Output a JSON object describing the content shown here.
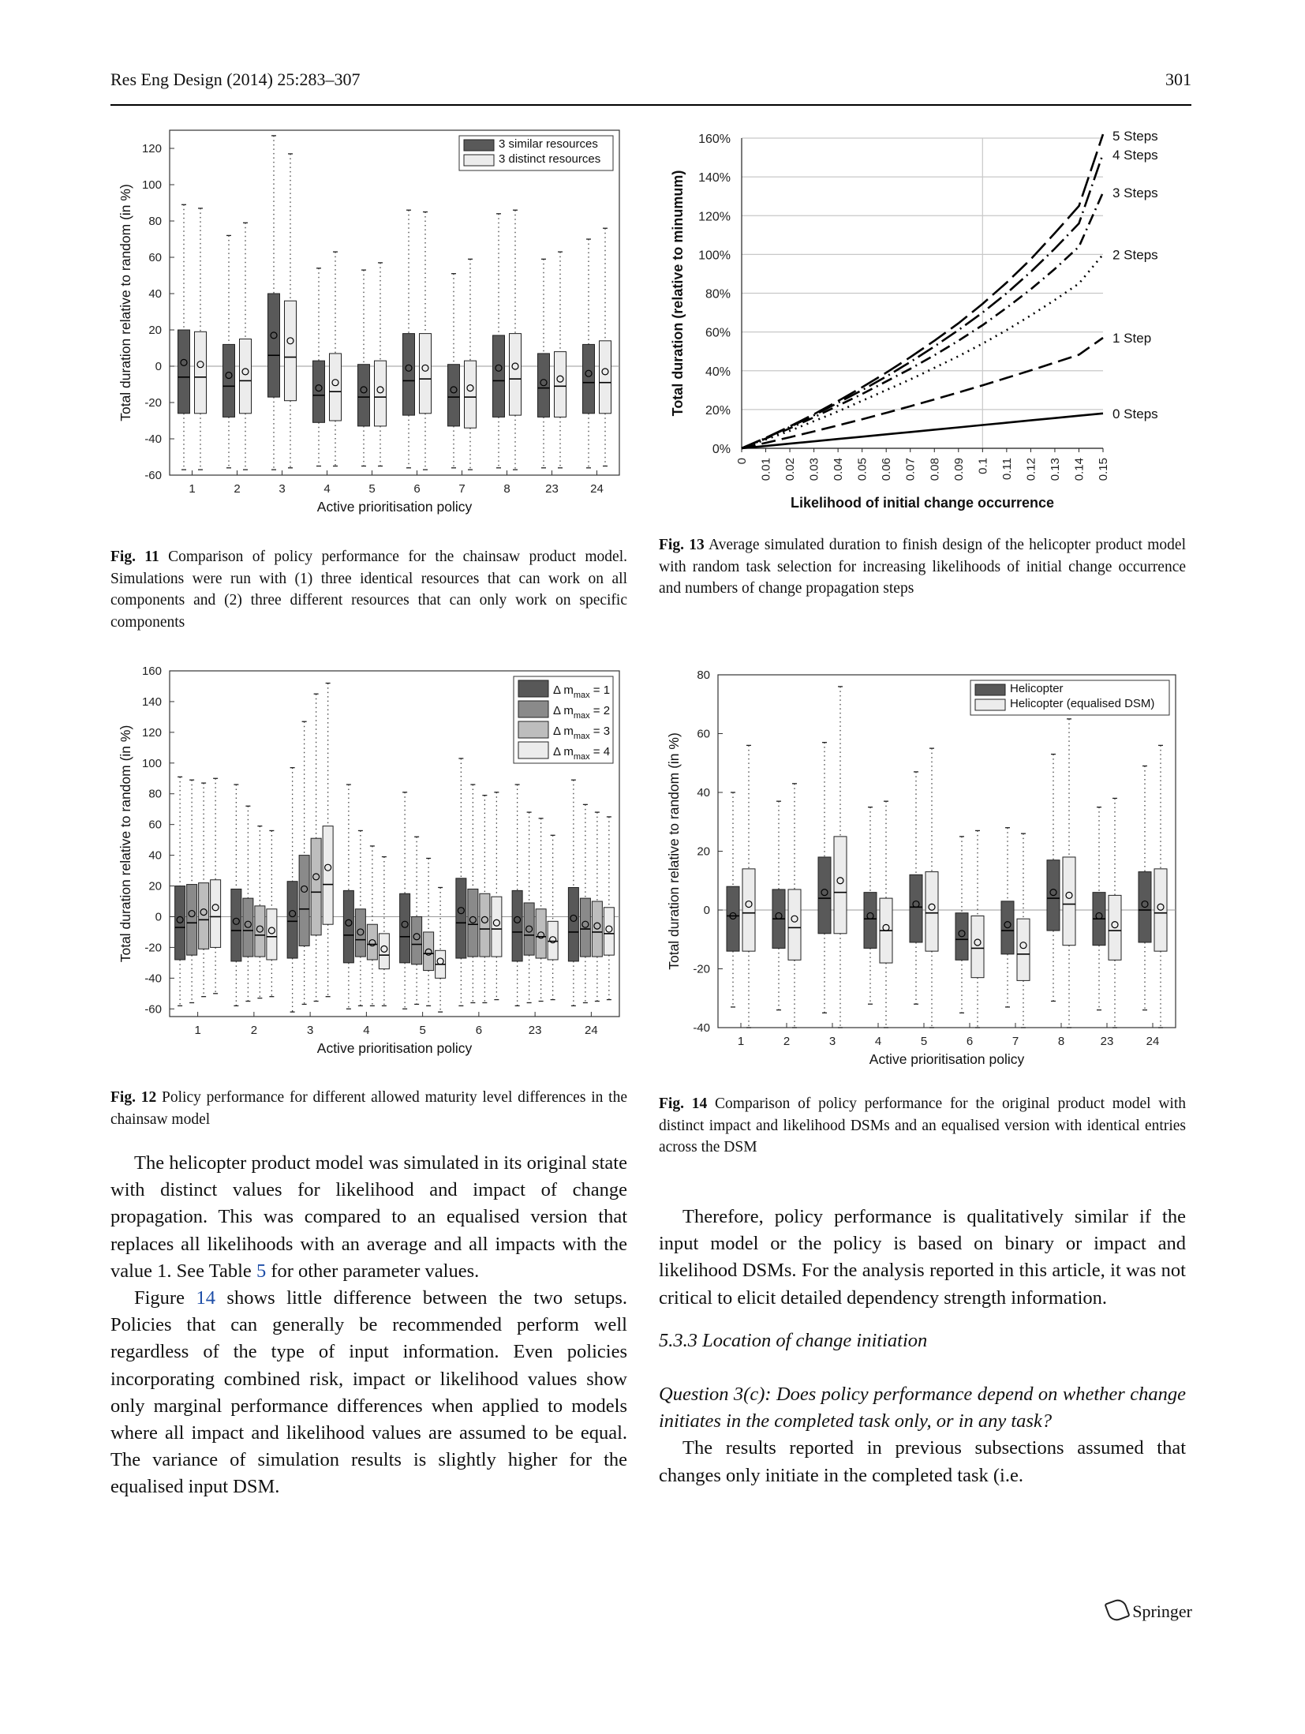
{
  "header": {
    "journal": "Res Eng Design (2014) 25:283–307",
    "page": "301"
  },
  "figures": {
    "fig11": {
      "label": "Fig. 11",
      "caption": "Comparison of policy performance for the chainsaw product model. Simulations were run with (1) three identical resources that can work on all components and (2) three different resources that can only work on specific components"
    },
    "fig12": {
      "label": "Fig. 12",
      "caption": "Policy performance for different allowed maturity level differences in the chainsaw model"
    },
    "fig13": {
      "label": "Fig. 13",
      "caption": "Average simulated duration to finish design of the helicopter product model with random task selection for increasing likelihoods of initial change occurrence and numbers of change propagation steps"
    },
    "fig14": {
      "label": "Fig. 14",
      "caption": "Comparison of policy performance for the original product model with distinct impact and likelihood DSMs and an equalised version with identical entries across the DSM"
    }
  },
  "chart_data": [
    {
      "id": "fig11",
      "type": "box",
      "xlabel": "Active prioritisation policy",
      "ylabel": "Total duration relative to random (in %)",
      "ylim": [
        -60,
        130
      ],
      "yticks": [
        -60,
        -40,
        -20,
        0,
        20,
        40,
        60,
        80,
        100,
        120
      ],
      "categories": [
        "1",
        "2",
        "3",
        "4",
        "5",
        "6",
        "7",
        "8",
        "23",
        "24"
      ],
      "legend_position": "top-right",
      "series": [
        {
          "name": "3 similar resources",
          "color": "#595959",
          "boxes": [
            [
              -57,
              -26,
              -6,
              20,
              89,
              2
            ],
            [
              -56,
              -28,
              -11,
              12,
              72,
              -5
            ],
            [
              -57,
              -17,
              6,
              40,
              127,
              17
            ],
            [
              -55,
              -31,
              -16,
              3,
              54,
              -12
            ],
            [
              -55,
              -33,
              -17,
              1,
              53,
              -13
            ],
            [
              -56,
              -27,
              -8,
              18,
              86,
              -1
            ],
            [
              -56,
              -33,
              -17,
              1,
              51,
              -13
            ],
            [
              -56,
              -28,
              -8,
              17,
              84,
              -1
            ],
            [
              -56,
              -28,
              -12,
              7,
              59,
              -9
            ],
            [
              -56,
              -26,
              -9,
              12,
              70,
              -4
            ]
          ]
        },
        {
          "name": "3 distinct resources",
          "color": "#ececec",
          "boxes": [
            [
              -57,
              -26,
              -6,
              19,
              87,
              1
            ],
            [
              -57,
              -26,
              -8,
              15,
              79,
              -3
            ],
            [
              -56,
              -19,
              5,
              36,
              117,
              14
            ],
            [
              -55,
              -30,
              -14,
              7,
              63,
              -9
            ],
            [
              -55,
              -33,
              -17,
              3,
              57,
              -13
            ],
            [
              -57,
              -26,
              -7,
              18,
              85,
              -1
            ],
            [
              -57,
              -34,
              -17,
              3,
              59,
              -12
            ],
            [
              -57,
              -27,
              -7,
              18,
              86,
              0
            ],
            [
              -56,
              -28,
              -11,
              8,
              63,
              -7
            ],
            [
              -55,
              -26,
              -9,
              14,
              76,
              -3
            ]
          ]
        }
      ]
    },
    {
      "id": "fig12",
      "type": "box",
      "xlabel": "Active prioritisation policy",
      "ylabel": "Total duration relative to random (in %)",
      "ylim": [
        -65,
        160
      ],
      "yticks": [
        -60,
        -40,
        -20,
        0,
        20,
        40,
        60,
        80,
        100,
        120,
        140,
        160
      ],
      "categories": [
        "1",
        "2",
        "3",
        "4",
        "5",
        "6",
        "23",
        "24"
      ],
      "legend_position": "top-right",
      "series": [
        {
          "name": "Δ m",
          "sub": "max",
          "suffix": " = 1",
          "color": "#585858",
          "boxes": [
            [
              -58,
              -28,
              -7,
              20,
              91,
              -2
            ],
            [
              -58,
              -29,
              -9,
              18,
              86,
              -3
            ],
            [
              -62,
              -27,
              -3,
              23,
              97,
              2
            ],
            [
              -60,
              -30,
              -12,
              17,
              86,
              -4
            ],
            [
              -60,
              -30,
              -13,
              15,
              81,
              -5
            ],
            [
              -58,
              -27,
              -4,
              25,
              103,
              4
            ],
            [
              -58,
              -29,
              -10,
              17,
              86,
              -2
            ],
            [
              -58,
              -29,
              -10,
              19,
              89,
              -1
            ]
          ]
        },
        {
          "name": "Δ m",
          "sub": "max",
          "suffix": " = 2",
          "color": "#8a8a8a",
          "boxes": [
            [
              -56,
              -25,
              -4,
              21,
              89,
              2
            ],
            [
              -55,
              -26,
              -9,
              12,
              72,
              -5
            ],
            [
              -57,
              -19,
              5,
              40,
              127,
              18
            ],
            [
              -58,
              -26,
              -15,
              5,
              56,
              -10
            ],
            [
              -57,
              -31,
              -18,
              0,
              52,
              -13
            ],
            [
              -56,
              -26,
              -5,
              18,
              86,
              -2
            ],
            [
              -56,
              -25,
              -12,
              9,
              68,
              -8
            ],
            [
              -56,
              -26,
              -8,
              12,
              73,
              -5
            ]
          ]
        },
        {
          "name": "Δ m",
          "sub": "max",
          "suffix": " = 3",
          "color": "#bdbdbd",
          "boxes": [
            [
              -52,
              -21,
              -2,
              22,
              87,
              3
            ],
            [
              -53,
              -26,
              -12,
              7,
              59,
              -8
            ],
            [
              -55,
              -12,
              16,
              51,
              145,
              26
            ],
            [
              -58,
              -28,
              -18,
              -5,
              46,
              -17
            ],
            [
              -58,
              -35,
              -24,
              -10,
              38,
              -23
            ],
            [
              -56,
              -26,
              -8,
              15,
              79,
              -2
            ],
            [
              -55,
              -27,
              -13,
              5,
              64,
              -12
            ],
            [
              -55,
              -26,
              -10,
              10,
              68,
              -6
            ]
          ]
        },
        {
          "name": "Δ m",
          "sub": "max",
          "suffix": " = 4",
          "color": "#ececec",
          "boxes": [
            [
              -50,
              -20,
              0,
              24,
              90,
              6
            ],
            [
              -52,
              -28,
              -13,
              5,
              56,
              -9
            ],
            [
              -52,
              -5,
              21,
              59,
              152,
              32
            ],
            [
              -58,
              -34,
              -25,
              -11,
              39,
              -21
            ],
            [
              -62,
              -40,
              -31,
              -22,
              19,
              -29
            ],
            [
              -54,
              -26,
              -8,
              13,
              81,
              -4
            ],
            [
              -54,
              -28,
              -16,
              -3,
              53,
              -15
            ],
            [
              -54,
              -25,
              -11,
              6,
              65,
              -8
            ]
          ]
        }
      ]
    },
    {
      "id": "fig13",
      "type": "line",
      "xlabel": "Likelihood of initial change occurrence",
      "ylabel": "Total duration (relative to minumum)",
      "x": [
        0,
        0.01,
        0.02,
        0.03,
        0.04,
        0.05,
        0.06,
        0.07,
        0.08,
        0.09,
        0.1,
        0.11,
        0.12,
        0.13,
        0.14,
        0.15
      ],
      "xticks": [
        "0",
        "0.01",
        "0.02",
        "0.03",
        "0.04",
        "0.05",
        "0.06",
        "0.07",
        "0.08",
        "0.09",
        "0.1",
        "0.11",
        "0.12",
        "0.13",
        "0.14",
        "0.15"
      ],
      "ylim": [
        0,
        160
      ],
      "yticks": [
        "0%",
        "20%",
        "40%",
        "60%",
        "80%",
        "100%",
        "120%",
        "140%",
        "160%"
      ],
      "grid": "x=0.1 and every y tick",
      "series": [
        {
          "name": "0 Steps",
          "style": "solid",
          "values": [
            0,
            1.2,
            2.4,
            3.6,
            4.8,
            6,
            7.2,
            8.4,
            9.6,
            10.8,
            12,
            13.2,
            14.4,
            15.6,
            16.8,
            18
          ]
        },
        {
          "name": "1 Step",
          "style": "dashed",
          "values": [
            0,
            2.8,
            5.7,
            8.7,
            11.8,
            15,
            18.3,
            21.7,
            25.2,
            28.8,
            32.5,
            36.3,
            40.2,
            44.2,
            48.3,
            57
          ]
        },
        {
          "name": "2 Steps",
          "style": "dotted",
          "values": [
            0,
            4.5,
            9,
            14,
            19,
            24.5,
            30,
            35.5,
            41.5,
            47.5,
            54,
            61,
            68.5,
            76.5,
            85,
            100
          ]
        },
        {
          "name": "3 Steps",
          "style": "dashdot",
          "values": [
            0,
            5,
            10.3,
            16,
            22,
            28,
            34.5,
            41,
            48,
            55.5,
            63.5,
            72.5,
            82,
            92.5,
            104,
            132
          ]
        },
        {
          "name": "4 Steps",
          "style": "longdashdot",
          "values": [
            0,
            5.3,
            11,
            17,
            23.5,
            30,
            37,
            44.5,
            52.5,
            61,
            70,
            80,
            91,
            103,
            116,
            152
          ]
        },
        {
          "name": "5 Steps",
          "style": "longdash",
          "values": [
            0,
            5.4,
            11.3,
            17.6,
            24.4,
            31.5,
            39,
            47,
            55.5,
            64.5,
            74.5,
            85.5,
            97.5,
            111,
            125,
            162
          ]
        }
      ]
    },
    {
      "id": "fig14",
      "type": "box",
      "xlabel": "Active prioritisation policy",
      "ylabel": "Total duration relative to random (in %)",
      "ylim": [
        -40,
        80
      ],
      "yticks": [
        -40,
        -20,
        0,
        20,
        40,
        60,
        80
      ],
      "categories": [
        "1",
        "2",
        "3",
        "4",
        "5",
        "6",
        "7",
        "8",
        "23",
        "24"
      ],
      "legend_position": "top-right",
      "series": [
        {
          "name": "Helicopter",
          "color": "#595959",
          "boxes": [
            [
              -33,
              -14,
              -2,
              8,
              40,
              -2
            ],
            [
              -34,
              -13,
              -3,
              7,
              37,
              -2
            ],
            [
              -35,
              -8,
              4,
              18,
              57,
              6
            ],
            [
              -32,
              -13,
              -3,
              6,
              35,
              -2
            ],
            [
              -32,
              -11,
              1,
              12,
              47,
              2
            ],
            [
              -35,
              -17,
              -10,
              -1,
              25,
              -8
            ],
            [
              -33,
              -15,
              -7,
              3,
              28,
              -5
            ],
            [
              -31,
              -7,
              4,
              17,
              53,
              6
            ],
            [
              -34,
              -12,
              -3,
              6,
              35,
              -2
            ],
            [
              -34,
              -11,
              0,
              13,
              49,
              2
            ]
          ]
        },
        {
          "name": "Helicopter (equalised DSM)",
          "color": "#ececec",
          "boxes": [
            [
              -40,
              -14,
              -1,
              14,
              56,
              2
            ],
            [
              -40,
              -17,
              -6,
              7,
              43,
              -3
            ],
            [
              -40,
              -8,
              6,
              25,
              76,
              10
            ],
            [
              -40,
              -18,
              -7,
              4,
              37,
              -6
            ],
            [
              -40,
              -14,
              -1,
              13,
              55,
              1
            ],
            [
              -40,
              -23,
              -13,
              -2,
              27,
              -11
            ],
            [
              -40,
              -24,
              -15,
              -3,
              26,
              -12
            ],
            [
              -40,
              -12,
              2,
              18,
              65,
              5
            ],
            [
              -40,
              -17,
              -7,
              5,
              38,
              -5
            ],
            [
              -40,
              -14,
              -1,
              14,
              56,
              1
            ]
          ]
        }
      ]
    }
  ],
  "body": {
    "left_p1": "The helicopter product model was simulated in its original state with distinct values for likelihood and impact of change propagation. This was compared to an equalised version that replaces all likelihoods with an average and all impacts with the value 1. See Table ",
    "left_p1_link": "5",
    "left_p1_end": " for other parameter values.",
    "left_p2_start": "Figure ",
    "left_p2_link": "14",
    "left_p2": " shows little difference between the two setups. Policies that can generally be recommended perform well regardless of the type of input information. Even policies incorporating combined risk, impact or likelihood values show only marginal performance differences when applied to models where all impact and likelihood values are assumed to be equal. The variance of simulation results is slightly higher for the equalised input DSM.",
    "right_p1": "Therefore, policy performance is qualitatively similar if the input model or the policy is based on binary or impact and likelihood DSMs. For the analysis reported in this article, it was not critical to elicit detailed dependency strength information.",
    "section": "5.3.3 Location of change initiation",
    "question": "Question 3(c): Does policy performance depend on whether change initiates in the completed task only, or in any task?",
    "right_p2": "The results reported in previous subsections assumed that changes only initiate in the completed task (i.e."
  },
  "footer": {
    "publisher": "Springer"
  }
}
